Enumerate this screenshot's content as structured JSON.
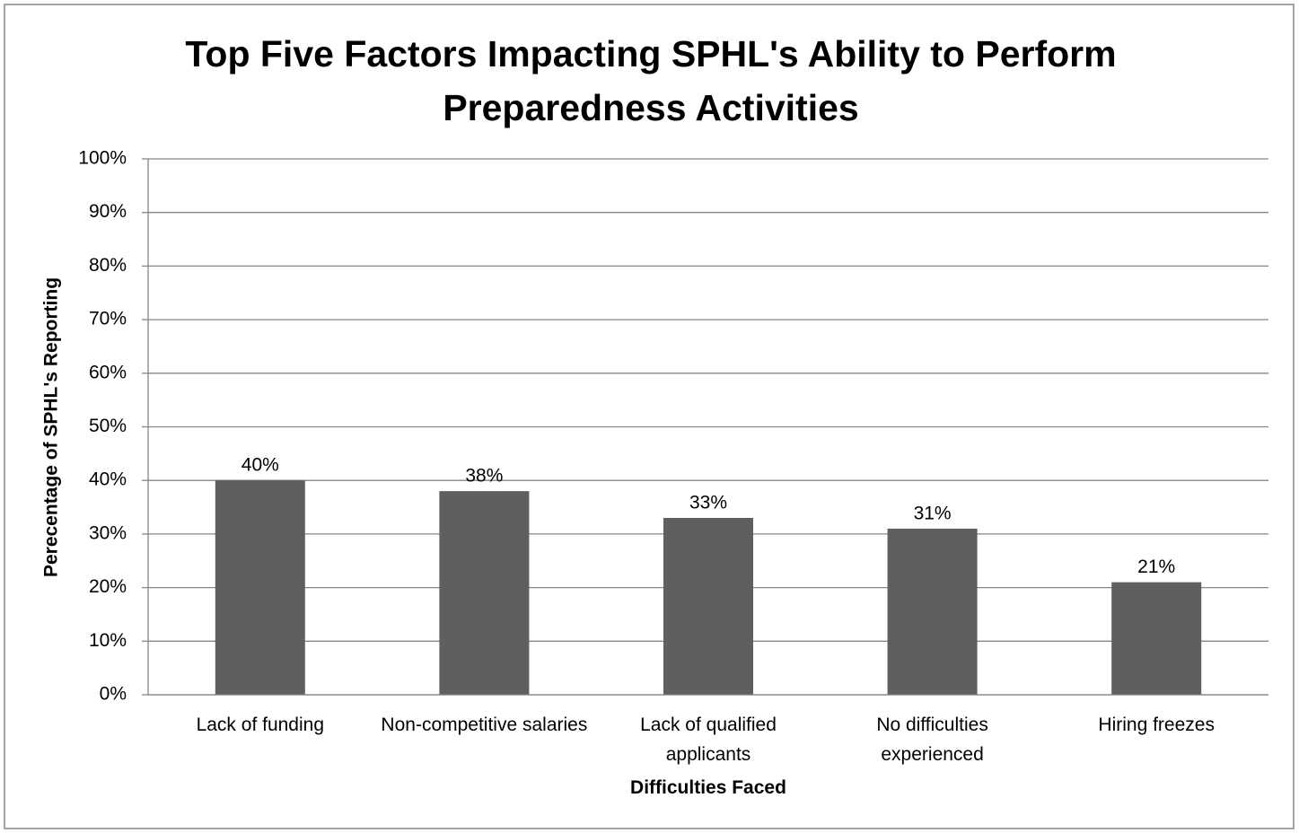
{
  "chart_data": {
    "type": "bar",
    "title": "Top Five Factors Impacting SPHL's Ability to Perform Preparedness Activities",
    "x_label": "Difficulties Faced",
    "y_label": "Perecentage of SPHL's Reporting",
    "categories": [
      "Lack of funding",
      "Non-competitive salaries",
      "Lack of qualified applicants",
      "No difficulties experienced",
      "Hiring freezes"
    ],
    "values": [
      40,
      38,
      33,
      31,
      21
    ],
    "value_labels": [
      "40%",
      "38%",
      "33%",
      "31%",
      "21%"
    ],
    "color": "#5f5f5f",
    "ylim": [
      0,
      100
    ],
    "yticks": [
      {
        "value": 0,
        "label": "0%"
      },
      {
        "value": 10,
        "label": "10%"
      },
      {
        "value": 20,
        "label": "20%"
      },
      {
        "value": 30,
        "label": "30%"
      },
      {
        "value": 40,
        "label": "40%"
      },
      {
        "value": 50,
        "label": "50%"
      },
      {
        "value": 60,
        "label": "60%"
      },
      {
        "value": 70,
        "label": "70%"
      },
      {
        "value": 80,
        "label": "80%"
      },
      {
        "value": 90,
        "label": "90%"
      },
      {
        "value": 100,
        "label": "100%"
      }
    ],
    "grid": true
  }
}
